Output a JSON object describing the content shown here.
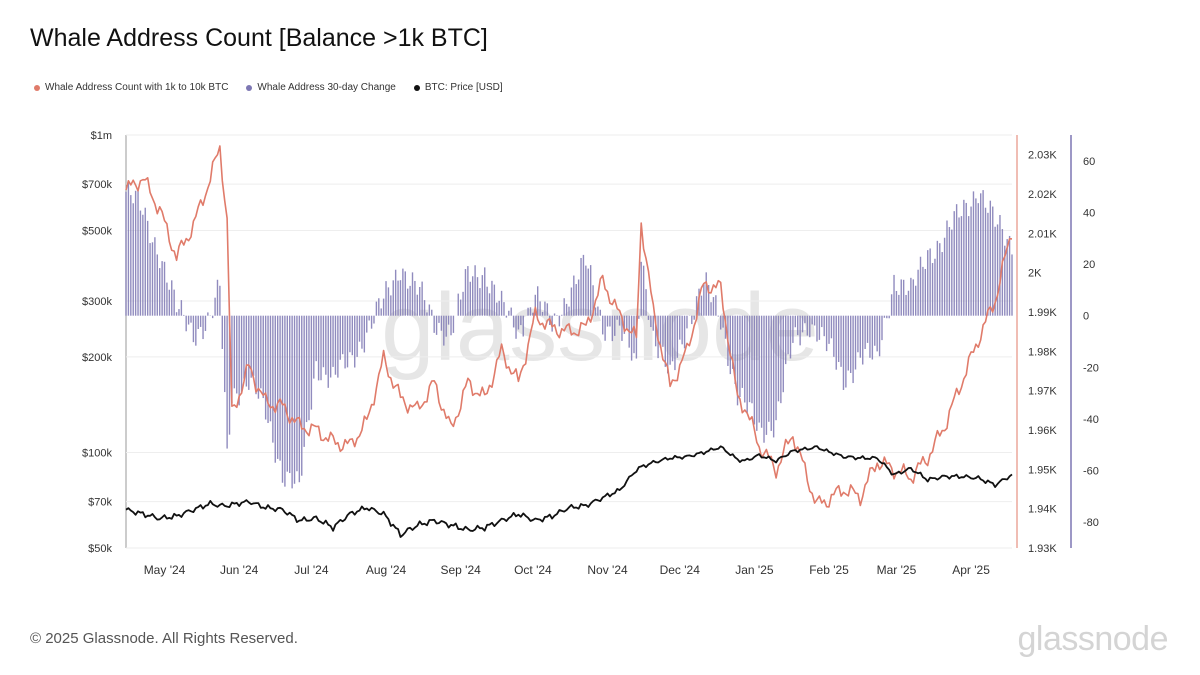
{
  "title": "Whale Address Count [Balance >1k BTC]",
  "legend": [
    {
      "label": "Whale Address Count with 1k to 10k BTC",
      "color": "#e07b6a"
    },
    {
      "label": "Whale Address 30-day Change",
      "color": "#7d77b3"
    },
    {
      "label": "BTC: Price [USD]",
      "color": "#111111"
    }
  ],
  "footer": "© 2025 Glassnode. All Rights Reserved.",
  "brand": "glassnode",
  "watermark": "glassnode",
  "chart_data": {
    "type": "line",
    "x_ticks": [
      "May '24",
      "Jun '24",
      "Jul '24",
      "Aug '24",
      "Sep '24",
      "Oct '24",
      "Nov '24",
      "Dec '24",
      "Jan '25",
      "Feb '25",
      "Mar '25",
      "Apr '25"
    ],
    "x_range": [
      "2024-04-15",
      "2025-04-18"
    ],
    "left_axis": {
      "label": "",
      "scale": "log",
      "ticks": [
        "$1m",
        "$700k",
        "$500k",
        "$300k",
        "$200k",
        "$100k",
        "$70k",
        "$50k"
      ],
      "range": [
        50000,
        1000000
      ]
    },
    "middle_axis": {
      "label": "",
      "ticks": [
        "2.03K",
        "2.02K",
        "2.01K",
        "2K",
        "1.99K",
        "1.98K",
        "1.97K",
        "1.96K",
        "1.95K",
        "1.94K",
        "1.93K"
      ],
      "range": [
        1930,
        2035
      ]
    },
    "right_axis": {
      "label": "",
      "ticks": [
        "60",
        "40",
        "20",
        "0",
        "-20",
        "-40",
        "-60",
        "-80"
      ],
      "range": [
        -90,
        70
      ]
    },
    "series": [
      {
        "name": "Whale Address Count with 1k to 10k BTC",
        "color": "#e07b6a",
        "axis": "middle",
        "x": [
          "2024-04-15",
          "2024-04-22",
          "2024-04-29",
          "2024-05-06",
          "2024-05-13",
          "2024-05-20",
          "2024-05-24",
          "2024-05-27",
          "2024-05-29",
          "2024-06-05",
          "2024-06-12",
          "2024-06-19",
          "2024-06-26",
          "2024-07-03",
          "2024-07-10",
          "2024-07-17",
          "2024-07-24",
          "2024-07-31",
          "2024-08-07",
          "2024-08-14",
          "2024-08-21",
          "2024-08-28",
          "2024-09-04",
          "2024-09-11",
          "2024-09-18",
          "2024-09-25",
          "2024-10-02",
          "2024-10-09",
          "2024-10-16",
          "2024-10-23",
          "2024-10-30",
          "2024-11-06",
          "2024-11-13",
          "2024-11-15",
          "2024-11-20",
          "2024-11-27",
          "2024-12-04",
          "2024-12-11",
          "2024-12-18",
          "2024-12-25",
          "2024-12-28",
          "2025-01-03",
          "2025-01-10",
          "2025-01-17",
          "2025-01-24",
          "2025-01-27",
          "2025-01-31",
          "2025-02-07",
          "2025-02-14",
          "2025-02-21",
          "2025-02-28",
          "2025-03-07",
          "2025-03-14",
          "2025-03-21",
          "2025-03-28",
          "2025-04-04",
          "2025-04-11",
          "2025-04-18"
        ],
        "y": [
          2021,
          2024,
          2016,
          2004,
          2012,
          2024,
          2032,
          2013,
          1964,
          1976,
          1967,
          1966,
          1961,
          1960,
          1957,
          1956,
          1962,
          1978,
          1968,
          1965,
          1972,
          1960,
          1972,
          1968,
          1980,
          1972,
          1989,
          1986,
          1985,
          1986,
          1998,
          1989,
          1983,
          2013,
          1990,
          1971,
          1980,
          1997,
          1996,
          1968,
          1966,
          1956,
          1950,
          1959,
          1946,
          1941,
          1942,
          1945,
          1943,
          1952,
          1950,
          1948,
          1953,
          1961,
          1972,
          1983,
          1993,
          2011
        ]
      },
      {
        "name": "Whale Address 30-day Change",
        "color": "#7d77b3",
        "axis": "right",
        "type": "bar",
        "x": [
          "2024-04-15",
          "2024-04-22",
          "2024-04-29",
          "2024-05-06",
          "2024-05-13",
          "2024-05-20",
          "2024-05-24",
          "2024-05-27",
          "2024-05-29",
          "2024-06-05",
          "2024-06-12",
          "2024-06-19",
          "2024-06-26",
          "2024-07-03",
          "2024-07-10",
          "2024-07-17",
          "2024-07-24",
          "2024-07-31",
          "2024-08-07",
          "2024-08-14",
          "2024-08-21",
          "2024-08-28",
          "2024-09-04",
          "2024-09-11",
          "2024-09-18",
          "2024-09-25",
          "2024-10-02",
          "2024-10-09",
          "2024-10-16",
          "2024-10-23",
          "2024-10-30",
          "2024-11-06",
          "2024-11-13",
          "2024-11-15",
          "2024-11-20",
          "2024-11-27",
          "2024-12-04",
          "2024-12-11",
          "2024-12-18",
          "2024-12-25",
          "2024-12-28",
          "2025-01-03",
          "2025-01-10",
          "2025-01-17",
          "2025-01-24",
          "2025-01-27",
          "2025-01-31",
          "2025-02-07",
          "2025-02-14",
          "2025-02-21",
          "2025-02-28",
          "2025-03-07",
          "2025-03-14",
          "2025-03-21",
          "2025-03-28",
          "2025-04-04",
          "2025-04-11",
          "2025-04-18"
        ],
        "y": [
          48,
          40,
          25,
          2,
          -6,
          -2,
          10,
          -55,
          -30,
          -25,
          -38,
          -60,
          -68,
          -18,
          -25,
          -18,
          -6,
          5,
          20,
          10,
          -3,
          -6,
          15,
          18,
          3,
          -6,
          8,
          -5,
          10,
          20,
          -3,
          -6,
          -20,
          25,
          -8,
          -25,
          -3,
          12,
          -1,
          -30,
          -35,
          -45,
          -40,
          -12,
          -2,
          -5,
          -12,
          -25,
          -15,
          -18,
          15,
          8,
          25,
          30,
          40,
          50,
          35,
          28
        ]
      },
      {
        "name": "BTC: Price [USD]",
        "color": "#111111",
        "axis": "left",
        "x": [
          "2024-04-15",
          "2024-04-22",
          "2024-04-29",
          "2024-05-06",
          "2024-05-13",
          "2024-05-20",
          "2024-05-24",
          "2024-05-27",
          "2024-05-29",
          "2024-06-05",
          "2024-06-12",
          "2024-06-19",
          "2024-06-26",
          "2024-07-03",
          "2024-07-10",
          "2024-07-17",
          "2024-07-24",
          "2024-07-31",
          "2024-08-07",
          "2024-08-14",
          "2024-08-21",
          "2024-08-28",
          "2024-09-04",
          "2024-09-11",
          "2024-09-18",
          "2024-09-25",
          "2024-10-02",
          "2024-10-09",
          "2024-10-16",
          "2024-10-23",
          "2024-10-30",
          "2024-11-06",
          "2024-11-13",
          "2024-11-15",
          "2024-11-20",
          "2024-11-27",
          "2024-12-04",
          "2024-12-11",
          "2024-12-18",
          "2024-12-25",
          "2024-12-28",
          "2025-01-03",
          "2025-01-10",
          "2025-01-17",
          "2025-01-24",
          "2025-01-27",
          "2025-01-31",
          "2025-02-07",
          "2025-02-14",
          "2025-02-21",
          "2025-02-28",
          "2025-03-07",
          "2025-03-14",
          "2025-03-21",
          "2025-03-28",
          "2025-04-04",
          "2025-04-11",
          "2025-04-18"
        ],
        "y": [
          66000,
          64000,
          62000,
          63000,
          66000,
          69000,
          68000,
          68000,
          68500,
          70000,
          67000,
          66000,
          61000,
          62000,
          58000,
          64000,
          67000,
          64000,
          55000,
          59000,
          61000,
          59000,
          57000,
          58000,
          61000,
          64000,
          61000,
          63000,
          67000,
          68000,
          72000,
          76000,
          88000,
          90000,
          93000,
          96000,
          97000,
          100000,
          104000,
          95000,
          94000,
          98000,
          94000,
          101000,
          103000,
          104000,
          101000,
          97000,
          96000,
          96000,
          85000,
          89000,
          82000,
          84000,
          84000,
          83000,
          79000,
          85000
        ]
      }
    ]
  }
}
